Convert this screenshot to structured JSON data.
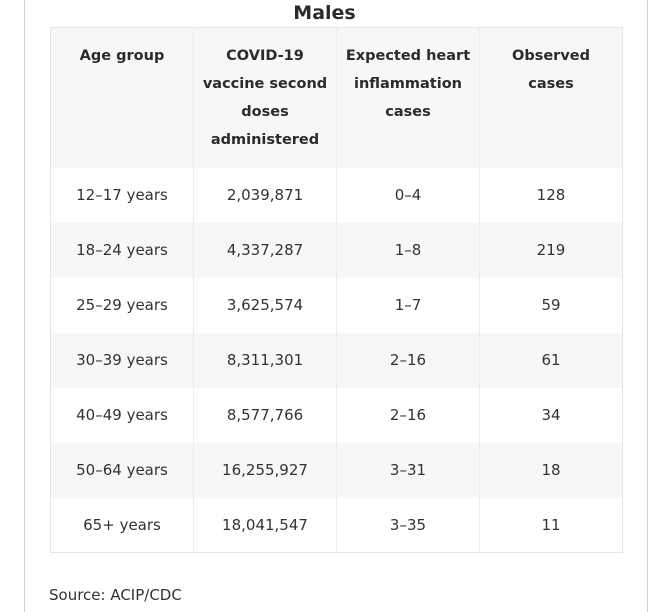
{
  "title": "Males",
  "table": {
    "headers": [
      "Age group",
      "COVID-19 vaccine second doses administered",
      "Expected heart inflammation cases",
      "Observed cases"
    ],
    "rows": [
      [
        "12–17 years",
        "2,039,871",
        "0–4",
        "128"
      ],
      [
        "18–24 years",
        "4,337,287",
        "1–8",
        "219"
      ],
      [
        "25–29 years",
        "3,625,574",
        "1–7",
        "59"
      ],
      [
        "30–39 years",
        "8,311,301",
        "2–16",
        "61"
      ],
      [
        "40–49 years",
        "8,577,766",
        "2–16",
        "34"
      ],
      [
        "50–64 years",
        "16,255,927",
        "3–31",
        "18"
      ],
      [
        "65+ years",
        "18,041,547",
        "3–35",
        "11"
      ]
    ]
  },
  "source": "Source: ACIP/CDC"
}
